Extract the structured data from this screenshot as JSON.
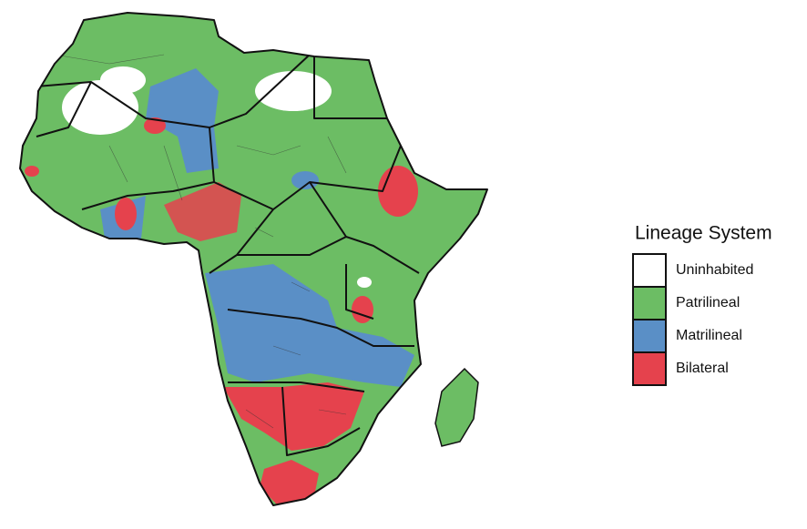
{
  "legend": {
    "title": "Lineage System",
    "items": [
      {
        "label": "Uninhabited",
        "color": "#ffffff"
      },
      {
        "label": "Patrilineal",
        "color": "#6cbd64"
      },
      {
        "label": "Matrilineal",
        "color": "#5a8fc6"
      },
      {
        "label": "Bilateral",
        "color": "#e5424d"
      }
    ]
  }
}
